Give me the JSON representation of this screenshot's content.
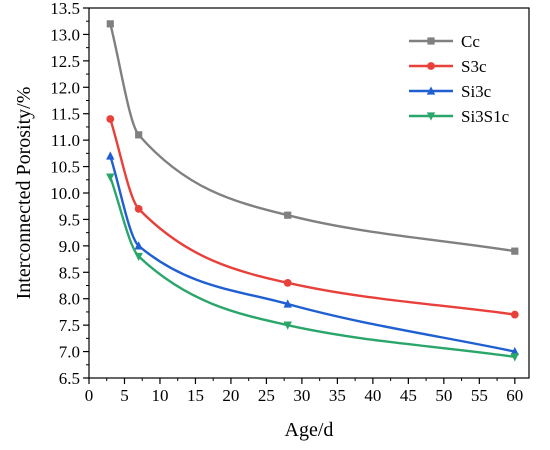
{
  "chart_data": {
    "type": "line",
    "title": "",
    "xlabel": "Age/d",
    "ylabel": "Interconnected Porosity/%",
    "xlim": [
      0,
      62
    ],
    "ylim": [
      6.5,
      13.5
    ],
    "x_ticks": [
      0,
      5,
      10,
      15,
      20,
      25,
      30,
      35,
      40,
      45,
      50,
      55,
      60
    ],
    "y_ticks": [
      6.5,
      7.0,
      7.5,
      8.0,
      8.5,
      9.0,
      9.5,
      10.0,
      10.5,
      11.0,
      11.5,
      12.0,
      12.5,
      13.0,
      13.5
    ],
    "grid": false,
    "legend_position": "top-right",
    "x": [
      3,
      7,
      28,
      60
    ],
    "series": [
      {
        "name": "Cc",
        "values": [
          13.2,
          11.1,
          9.58,
          8.9
        ],
        "color": "#808080",
        "marker": "square"
      },
      {
        "name": "S3c",
        "values": [
          11.4,
          9.7,
          8.3,
          7.7
        ],
        "color": "#e8403a",
        "marker": "circle"
      },
      {
        "name": "Si3c",
        "values": [
          10.7,
          9.0,
          7.9,
          7.0
        ],
        "color": "#1f5fd1",
        "marker": "triangle-up"
      },
      {
        "name": "Si3S1c",
        "values": [
          10.3,
          8.8,
          7.5,
          6.9
        ],
        "color": "#2aa66a",
        "marker": "triangle-down"
      }
    ]
  }
}
